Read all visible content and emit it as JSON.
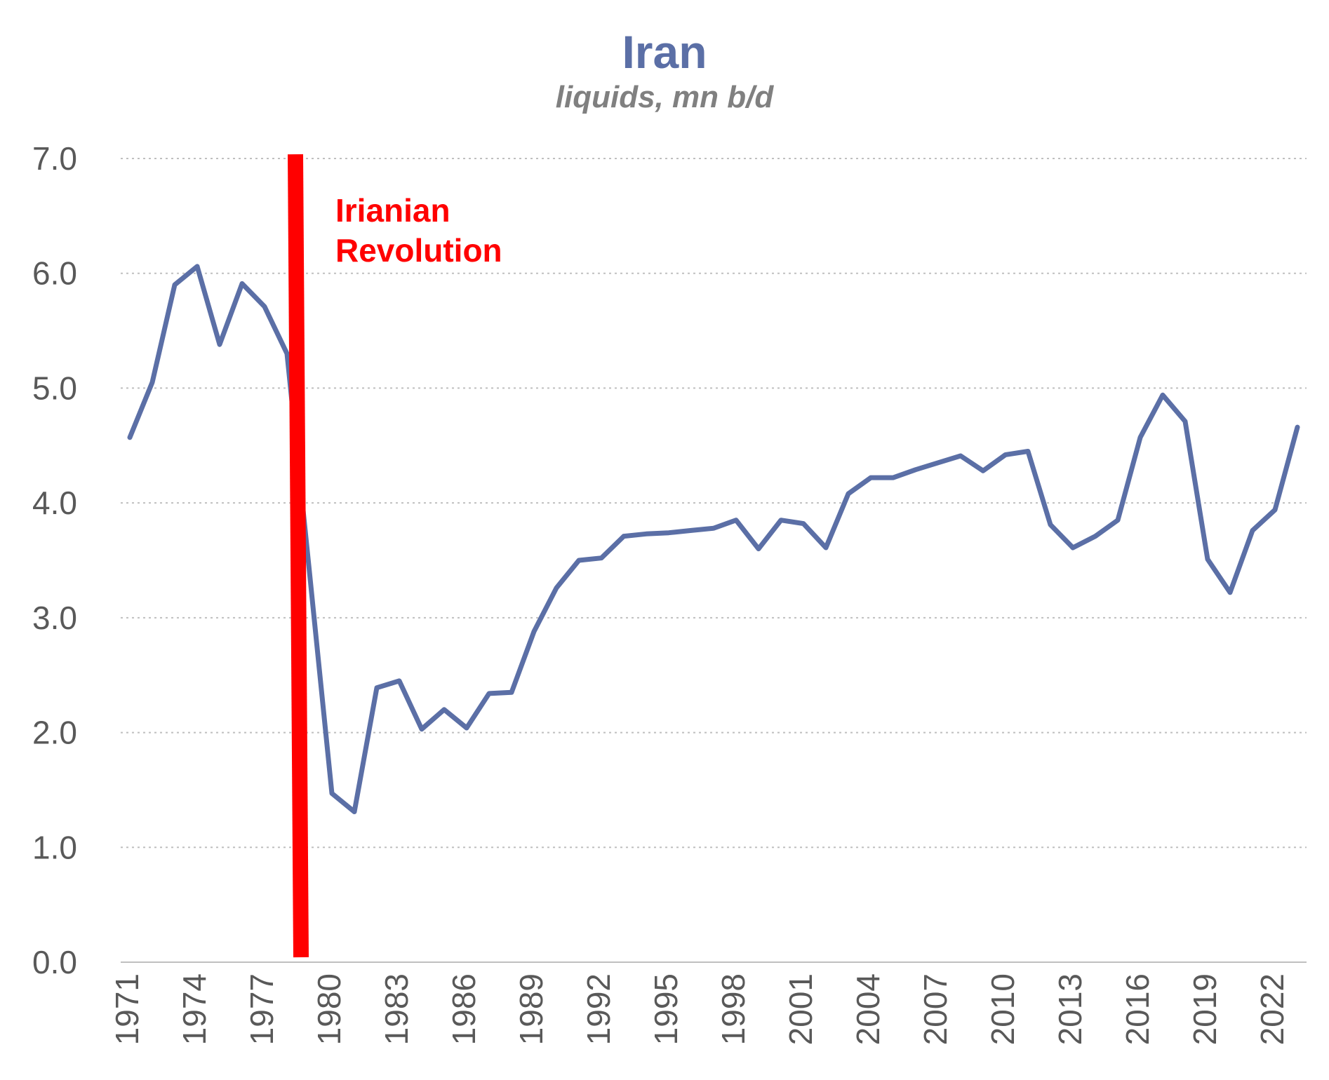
{
  "chart_data": {
    "type": "line",
    "title": "Iran",
    "subtitle": "liquids, mn b/d",
    "xlabel": "",
    "ylabel": "",
    "ylim": [
      0,
      7
    ],
    "yticks": [
      "0.0",
      "1.0",
      "2.0",
      "3.0",
      "4.0",
      "5.0",
      "6.0",
      "7.0"
    ],
    "grid": true,
    "legend": "none",
    "x_tick_labels": [
      "1971",
      "1974",
      "1977",
      "1980",
      "1983",
      "1986",
      "1989",
      "1992",
      "1995",
      "1998",
      "2001",
      "2004",
      "2007",
      "2010",
      "2013",
      "2016",
      "2019",
      "2022"
    ],
    "x": [
      1971,
      1972,
      1973,
      1974,
      1975,
      1976,
      1977,
      1978,
      1979,
      1980,
      1981,
      1982,
      1983,
      1984,
      1985,
      1986,
      1987,
      1988,
      1989,
      1990,
      1991,
      1992,
      1993,
      1994,
      1995,
      1996,
      1997,
      1998,
      1999,
      2000,
      2001,
      2002,
      2003,
      2004,
      2005,
      2006,
      2007,
      2008,
      2009,
      2010,
      2011,
      2012,
      2013,
      2014,
      2015,
      2016,
      2017,
      2018,
      2019,
      2020,
      2021,
      2022,
      2023
    ],
    "series": [
      {
        "values": [
          4.57,
          5.05,
          5.9,
          6.06,
          5.38,
          5.91,
          5.71,
          5.3,
          3.4,
          1.47,
          1.31,
          2.39,
          2.45,
          2.03,
          2.2,
          2.04,
          2.34,
          2.35,
          2.88,
          3.26,
          3.5,
          3.52,
          3.71,
          3.73,
          3.74,
          3.76,
          3.78,
          3.85,
          3.6,
          3.85,
          3.82,
          3.61,
          4.08,
          4.22,
          4.22,
          4.29,
          4.35,
          4.41,
          4.28,
          4.42,
          4.45,
          3.81,
          3.61,
          3.71,
          3.85,
          4.57,
          4.94,
          4.71,
          3.51,
          3.22,
          3.76,
          3.94,
          4.66
        ]
      }
    ],
    "annotations": [
      {
        "type": "vertical-line",
        "x": 1978.5,
        "text": [
          "Irianian",
          "Revolution"
        ]
      }
    ],
    "colors": {
      "series": "#5B6FA6",
      "annotation": "#FF0000",
      "title": "#5B6FA6",
      "subtitle": "#808080",
      "axis_text": "#595959",
      "grid": "#BFBFBF",
      "axis": "#BFBFBF"
    }
  }
}
